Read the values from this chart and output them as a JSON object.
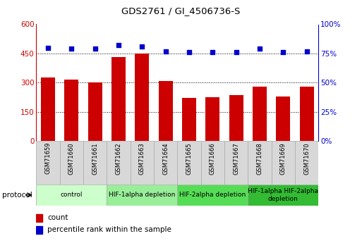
{
  "title": "GDS2761 / GI_4506736-S",
  "samples": [
    "GSM71659",
    "GSM71660",
    "GSM71661",
    "GSM71662",
    "GSM71663",
    "GSM71664",
    "GSM71665",
    "GSM71666",
    "GSM71667",
    "GSM71668",
    "GSM71669",
    "GSM71670"
  ],
  "bar_values": [
    325,
    315,
    300,
    430,
    450,
    310,
    220,
    225,
    235,
    280,
    230,
    280
  ],
  "percentile_values": [
    80,
    79,
    79,
    82,
    81,
    77,
    76,
    76,
    76,
    79,
    76,
    77
  ],
  "bar_color": "#cc0000",
  "dot_color": "#0000cc",
  "ylim_left": [
    0,
    600
  ],
  "ylim_right": [
    0,
    100
  ],
  "yticks_left": [
    0,
    150,
    300,
    450,
    600
  ],
  "yticks_right": [
    0,
    25,
    50,
    75,
    100
  ],
  "ytick_labels_right": [
    "0%",
    "25%",
    "50%",
    "75%",
    "100%"
  ],
  "grid_lines": [
    150,
    300,
    450
  ],
  "groups": [
    {
      "label": "control",
      "start": 0,
      "end": 3,
      "color": "#ccffcc"
    },
    {
      "label": "HIF-1alpha depletion",
      "start": 3,
      "end": 6,
      "color": "#99ee99"
    },
    {
      "label": "HIF-2alpha depletion",
      "start": 6,
      "end": 9,
      "color": "#55dd55"
    },
    {
      "label": "HIF-1alpha HIF-2alpha\ndepletion",
      "start": 9,
      "end": 12,
      "color": "#33bb33"
    }
  ],
  "protocol_label": "protocol",
  "legend_count_label": "count",
  "legend_pct_label": "percentile rank within the sample",
  "bg_color": "#ffffff",
  "sample_box_color": "#d8d8d8",
  "sample_box_edge": "#aaaaaa"
}
